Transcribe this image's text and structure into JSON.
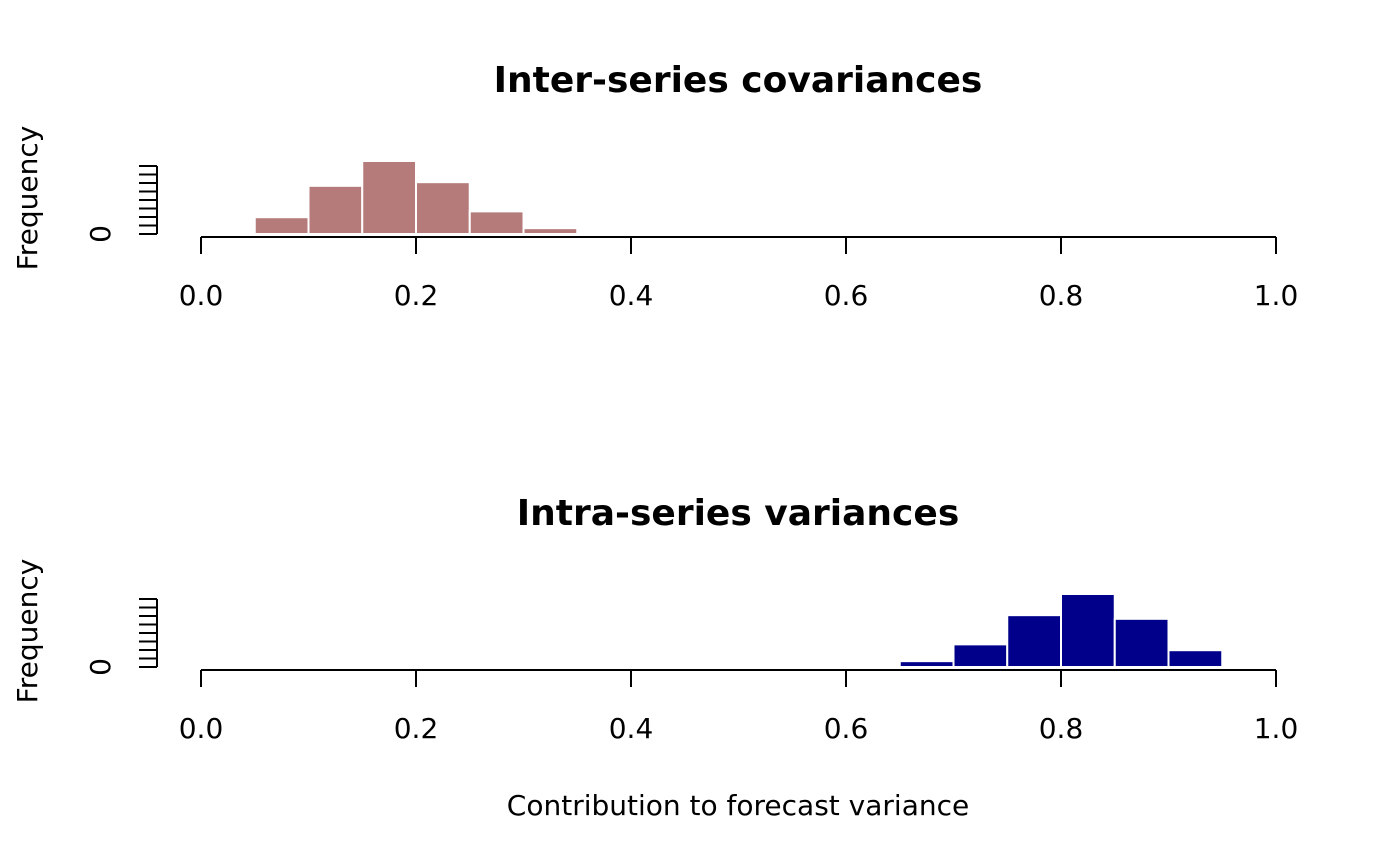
{
  "chart_data": [
    {
      "type": "bar",
      "title": "Inter-series covariances",
      "ylabel": "Frequency",
      "xlabel": "",
      "xlim": [
        0.0,
        1.0
      ],
      "xticks": [
        "0.0",
        "0.2",
        "0.4",
        "0.6",
        "0.8",
        "1.0"
      ],
      "ytick_label": "0",
      "bar_color": "#B57B7A",
      "bin_width": 0.05,
      "bins": [
        {
          "start": 0.05,
          "end": 0.1,
          "value": 0.23
        },
        {
          "start": 0.1,
          "end": 0.15,
          "value": 0.66
        },
        {
          "start": 0.15,
          "end": 0.2,
          "value": 1.0
        },
        {
          "start": 0.2,
          "end": 0.25,
          "value": 0.71
        },
        {
          "start": 0.25,
          "end": 0.3,
          "value": 0.31
        },
        {
          "start": 0.3,
          "end": 0.35,
          "value": 0.08
        }
      ]
    },
    {
      "type": "bar",
      "title": "Intra-series variances",
      "ylabel": "Frequency",
      "xlabel": "Contribution to forecast variance",
      "xlim": [
        0.0,
        1.0
      ],
      "xticks": [
        "0.0",
        "0.2",
        "0.4",
        "0.6",
        "0.8",
        "1.0"
      ],
      "ytick_label": "0",
      "bar_color": "#00008B",
      "bin_width": 0.05,
      "bins": [
        {
          "start": 0.65,
          "end": 0.7,
          "value": 0.08
        },
        {
          "start": 0.7,
          "end": 0.75,
          "value": 0.31
        },
        {
          "start": 0.75,
          "end": 0.8,
          "value": 0.71
        },
        {
          "start": 0.8,
          "end": 0.85,
          "value": 1.0
        },
        {
          "start": 0.85,
          "end": 0.9,
          "value": 0.66
        },
        {
          "start": 0.9,
          "end": 0.95,
          "value": 0.23
        }
      ]
    }
  ]
}
